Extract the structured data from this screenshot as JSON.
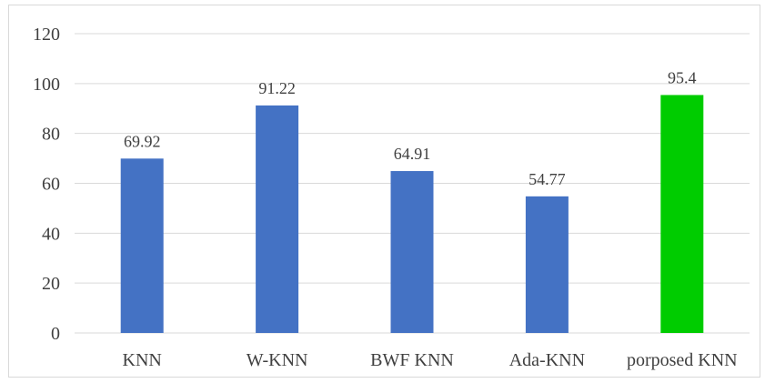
{
  "chart_data": {
    "type": "bar",
    "categories": [
      "KNN",
      "W-KNN",
      "BWF KNN",
      "Ada-KNN",
      "porposed KNN"
    ],
    "values": [
      69.92,
      91.22,
      64.91,
      54.77,
      95.4
    ],
    "data_labels": [
      "69.92",
      "91.22",
      "64.91",
      "54.77",
      "95.4"
    ],
    "bar_colors": [
      "#4472c4",
      "#4472c4",
      "#4472c4",
      "#4472c4",
      "#00cc00"
    ],
    "title": "",
    "xlabel": "",
    "ylabel": "",
    "ylim": [
      0,
      120
    ],
    "yticks": [
      0,
      20,
      40,
      60,
      80,
      100,
      120
    ],
    "grid": true,
    "legend": "none"
  }
}
